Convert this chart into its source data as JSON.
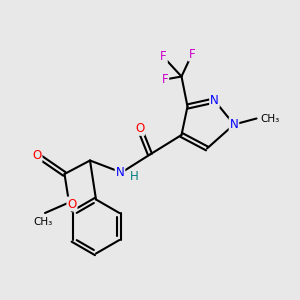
{
  "background_color": "#e8e8e8",
  "atoms": {
    "C": "#000000",
    "N": "#0000ff",
    "O": "#ff0000",
    "F": "#cc00cc",
    "H": "#008080"
  },
  "bond_color": "#000000",
  "bond_width": 1.5,
  "figsize": [
    3.0,
    3.0
  ],
  "dpi": 100
}
